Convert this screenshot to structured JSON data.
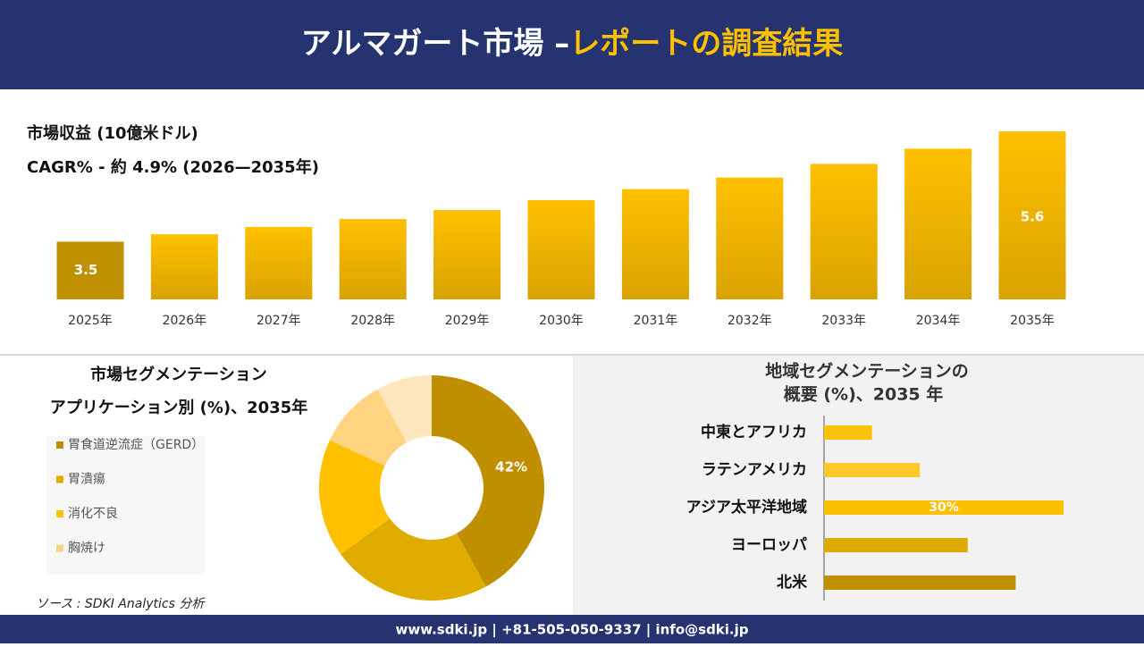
{
  "header": {
    "title_main": "アルマガート市場 –",
    "title_highlight": "レポートの調査結果"
  },
  "source": "ソース : SDKI Analytics 分析",
  "footer": "www.sdki.jp | +81-505-050-9337 | info@sdki.jp",
  "chart_data": [
    {
      "type": "bar",
      "title": "市場収益 (10億米ドル)",
      "subtitle": "CAGR% - 約 4.9% (2026—2035年)",
      "categories": [
        "2025年",
        "2026年",
        "2027年",
        "2028年",
        "2029年",
        "2030年",
        "2031年",
        "2032年",
        "2033年",
        "2034年",
        "2035年"
      ],
      "values": [
        3.5,
        3.64,
        3.78,
        3.93,
        4.1,
        4.29,
        4.5,
        4.72,
        4.98,
        5.27,
        5.6
      ],
      "value_labels": [
        "3.5",
        null,
        null,
        null,
        null,
        null,
        null,
        null,
        null,
        null,
        "5.6"
      ],
      "ylim": [
        2.4,
        5.6
      ],
      "color": "#f5b800"
    },
    {
      "type": "donut",
      "title": "市場セグメンテーション",
      "subtitle": "アプリケーション別 (%)、2035年",
      "categories": [
        "胃食道逆流症（GERD）",
        "胃潰瘍",
        "消化不良",
        "胸焼け",
        null
      ],
      "values": [
        42,
        23,
        17,
        10,
        8
      ],
      "value_labels": [
        "42%",
        null,
        null,
        null,
        null
      ],
      "colors": [
        "#bf8f00",
        "#e0ac00",
        "#ffc000",
        "#ffd480",
        "#ffe6bf"
      ]
    },
    {
      "type": "hbar",
      "title": "地域セグメンテーションの",
      "subtitle": "概要 (%)、2035 年",
      "categories": [
        "中東とアフリカ",
        "ラテンアメリカ",
        "アジア太平洋地域",
        "ヨーロッパ",
        "北米"
      ],
      "values": [
        6,
        12,
        30,
        18,
        24
      ],
      "value_labels": [
        null,
        null,
        "30%",
        null,
        null
      ],
      "xlim": [
        0,
        30
      ],
      "colors": [
        "#fac20a",
        "#fcc82a",
        "#fcc000",
        "#e0ab00",
        "#c09000"
      ]
    }
  ]
}
